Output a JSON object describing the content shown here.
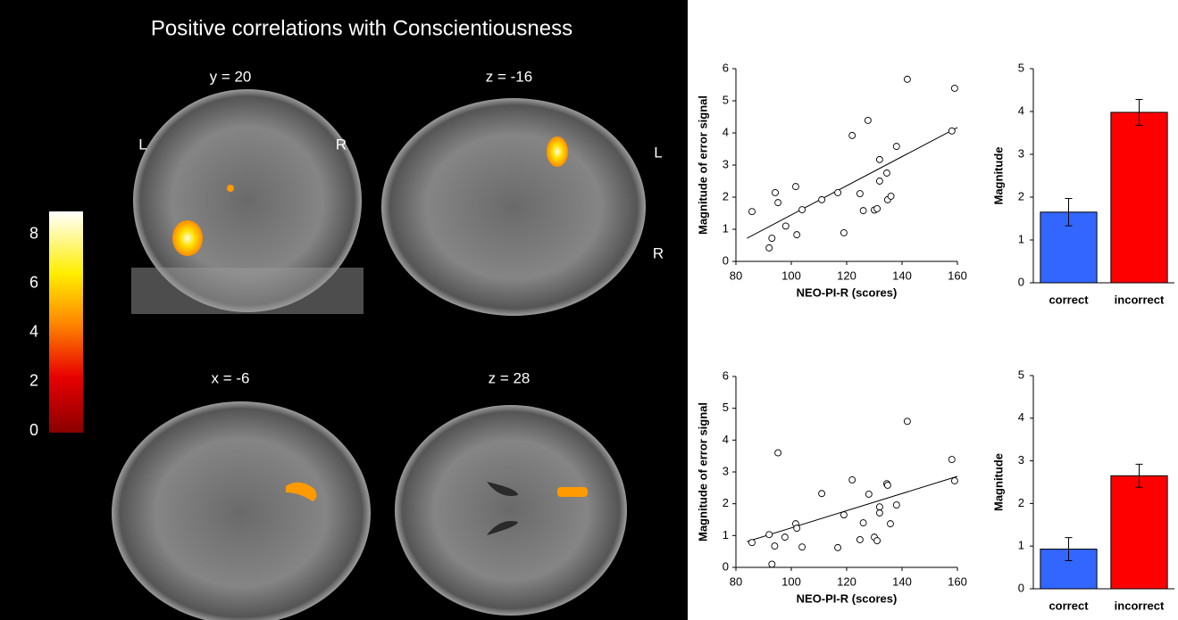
{
  "brain_panel": {
    "title": "Positive correlations with Conscientiousness",
    "slices": [
      "y = 20",
      "z = -16",
      "x = -6",
      "z = 28"
    ],
    "orientation_labels": [
      "L",
      "R",
      "L",
      "R"
    ],
    "colorbar": {
      "lim": [
        0,
        9
      ],
      "ticks": [
        0,
        2,
        4,
        6,
        8
      ]
    }
  },
  "chart_data": [
    {
      "type": "scatter",
      "xlabel": "NEO-PI-R (scores)",
      "ylabel": "Magnitude of error signal",
      "x": [
        85.8,
        92,
        93,
        94.2,
        95.2,
        98,
        101.6,
        102,
        103.9,
        111,
        116.8,
        119,
        122,
        124.8,
        126,
        127.7,
        130,
        131,
        131.9,
        131.9,
        134.5,
        134.8,
        136,
        138,
        141.9,
        158,
        159
      ],
      "values": [
        1.55,
        0.42,
        0.72,
        2.14,
        1.83,
        1.1,
        2.33,
        0.83,
        1.61,
        1.92,
        2.14,
        0.89,
        3.92,
        2.11,
        1.58,
        4.39,
        1.6,
        1.64,
        3.17,
        2.5,
        2.75,
        1.92,
        2.03,
        3.58,
        5.67,
        4.06,
        5.39
      ],
      "trendline": {
        "x": [
          84,
          160
        ],
        "y": [
          0.72,
          4.17
        ]
      },
      "xlim": [
        80,
        160
      ],
      "xticks": [
        80,
        100,
        120,
        140,
        160
      ],
      "ylim": [
        0,
        6
      ],
      "yticks": [
        0,
        1,
        2,
        3,
        4,
        5,
        6
      ]
    },
    {
      "type": "bar",
      "ylabel": "Magnitude",
      "categories": [
        "correct",
        "incorrect"
      ],
      "values": [
        1.65,
        3.98
      ],
      "errors": [
        0.32,
        0.3
      ],
      "colors": [
        "#3366ff",
        "#ff0000"
      ],
      "ylim": [
        0,
        5
      ],
      "yticks": [
        0,
        1,
        2,
        3,
        4,
        5
      ]
    },
    {
      "type": "scatter",
      "xlabel": "NEO-PI-R (scores)",
      "ylabel": "Magnitude of error signal",
      "x": [
        85.8,
        92,
        93,
        94,
        95.2,
        97.7,
        101.6,
        102,
        103.9,
        111,
        116.8,
        119,
        122,
        124.8,
        126,
        128,
        130,
        131,
        131.9,
        131.9,
        134.5,
        134.8,
        135.8,
        138,
        141.9,
        158,
        159
      ],
      "values": [
        0.78,
        1.03,
        0.1,
        0.67,
        3.6,
        0.95,
        1.37,
        1.23,
        0.64,
        2.32,
        0.62,
        1.65,
        2.75,
        0.87,
        1.4,
        2.3,
        0.95,
        0.84,
        1.9,
        1.71,
        2.63,
        2.58,
        1.37,
        1.96,
        4.59,
        3.39,
        2.72
      ],
      "trendline": {
        "x": [
          84,
          160
        ],
        "y": [
          0.81,
          2.86
        ]
      },
      "xlim": [
        80,
        160
      ],
      "xticks": [
        80,
        100,
        120,
        140,
        160
      ],
      "ylim": [
        0,
        6
      ],
      "yticks": [
        0,
        1,
        2,
        3,
        4,
        5,
        6
      ]
    },
    {
      "type": "bar",
      "ylabel": "Magnitude",
      "categories": [
        "correct",
        "incorrect"
      ],
      "values": [
        0.93,
        2.65
      ],
      "errors": [
        0.27,
        0.27
      ],
      "colors": [
        "#3366ff",
        "#ff0000"
      ],
      "ylim": [
        0,
        5
      ],
      "yticks": [
        0,
        1,
        2,
        3,
        4,
        5
      ]
    }
  ]
}
